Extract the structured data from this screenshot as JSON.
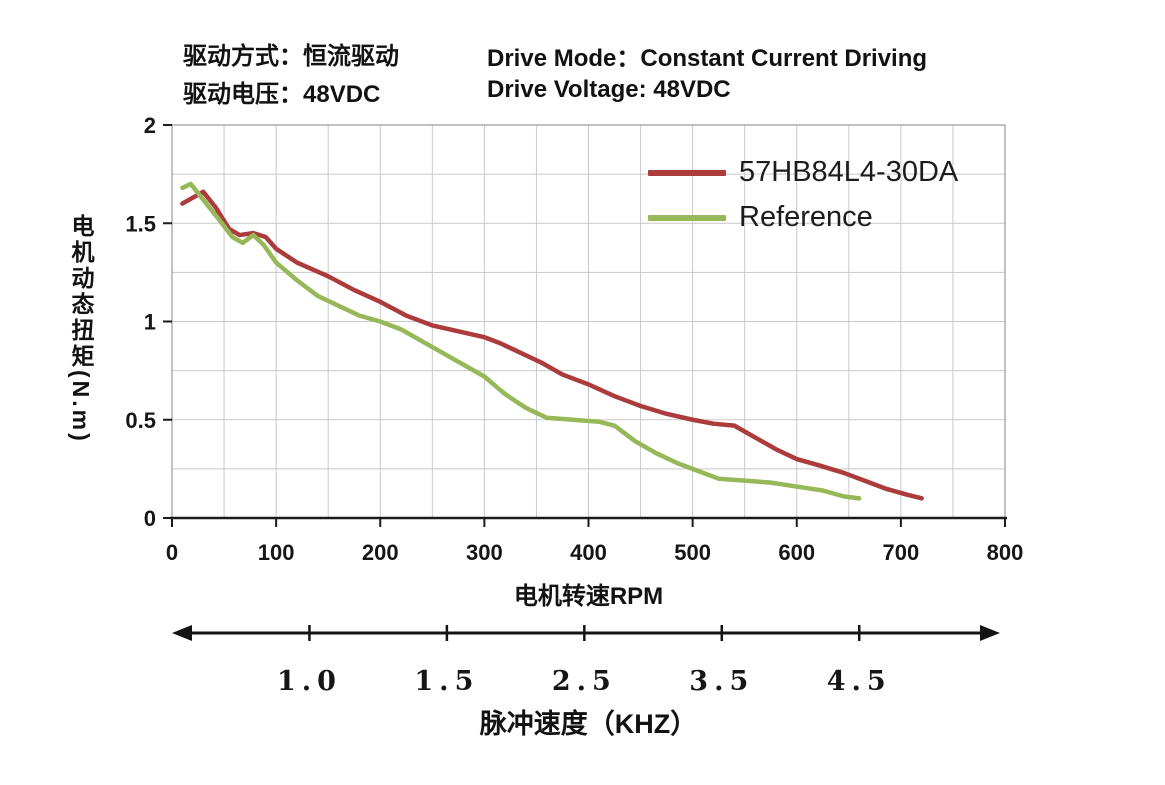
{
  "header": {
    "drive_mode_cn": "驱动方式：恒流驱动",
    "drive_mode_en": "Drive Mode：Constant Current Driving",
    "drive_voltage_cn": "驱动电压：48VDC",
    "drive_voltage_en": "Drive Voltage: 48VDC"
  },
  "chart_data": {
    "type": "line",
    "title": "",
    "xlabel": "电机转速RPM",
    "ylabel": "电机动态扭矩(N.m)",
    "xlim": [
      0,
      800
    ],
    "ylim": [
      0,
      2
    ],
    "xticks": [
      0,
      100,
      200,
      300,
      400,
      500,
      600,
      700,
      800
    ],
    "yticks": [
      0,
      0.5,
      1,
      1.5,
      2
    ],
    "grid": true,
    "grid_minor_x_step": 50,
    "grid_minor_y_step": 0.25,
    "legend_position": "top-right",
    "series": [
      {
        "name": "57HB84L4-30DA",
        "color": "#ac3c3c",
        "points": [
          [
            10,
            1.6
          ],
          [
            20,
            1.63
          ],
          [
            30,
            1.66
          ],
          [
            42,
            1.58
          ],
          [
            55,
            1.47
          ],
          [
            65,
            1.44
          ],
          [
            78,
            1.45
          ],
          [
            90,
            1.43
          ],
          [
            100,
            1.37
          ],
          [
            120,
            1.3
          ],
          [
            150,
            1.23
          ],
          [
            175,
            1.16
          ],
          [
            200,
            1.1
          ],
          [
            225,
            1.03
          ],
          [
            250,
            0.98
          ],
          [
            275,
            0.95
          ],
          [
            300,
            0.92
          ],
          [
            315,
            0.89
          ],
          [
            335,
            0.84
          ],
          [
            355,
            0.79
          ],
          [
            375,
            0.73
          ],
          [
            400,
            0.68
          ],
          [
            425,
            0.62
          ],
          [
            450,
            0.57
          ],
          [
            475,
            0.53
          ],
          [
            500,
            0.5
          ],
          [
            520,
            0.48
          ],
          [
            540,
            0.47
          ],
          [
            560,
            0.41
          ],
          [
            580,
            0.35
          ],
          [
            600,
            0.3
          ],
          [
            620,
            0.27
          ],
          [
            645,
            0.23
          ],
          [
            665,
            0.19
          ],
          [
            685,
            0.15
          ],
          [
            705,
            0.12
          ],
          [
            720,
            0.1
          ]
        ]
      },
      {
        "name": "Reference",
        "color": "#96b858",
        "points": [
          [
            10,
            1.68
          ],
          [
            18,
            1.7
          ],
          [
            30,
            1.62
          ],
          [
            45,
            1.52
          ],
          [
            58,
            1.43
          ],
          [
            68,
            1.4
          ],
          [
            78,
            1.44
          ],
          [
            88,
            1.39
          ],
          [
            100,
            1.3
          ],
          [
            120,
            1.21
          ],
          [
            140,
            1.13
          ],
          [
            160,
            1.08
          ],
          [
            180,
            1.03
          ],
          [
            200,
            1.0
          ],
          [
            220,
            0.96
          ],
          [
            240,
            0.9
          ],
          [
            260,
            0.84
          ],
          [
            280,
            0.78
          ],
          [
            300,
            0.72
          ],
          [
            320,
            0.63
          ],
          [
            340,
            0.56
          ],
          [
            360,
            0.51
          ],
          [
            385,
            0.5
          ],
          [
            410,
            0.49
          ],
          [
            425,
            0.47
          ],
          [
            445,
            0.39
          ],
          [
            465,
            0.33
          ],
          [
            485,
            0.28
          ],
          [
            505,
            0.24
          ],
          [
            525,
            0.2
          ],
          [
            550,
            0.19
          ],
          [
            575,
            0.18
          ],
          [
            600,
            0.16
          ],
          [
            625,
            0.14
          ],
          [
            645,
            0.11
          ],
          [
            660,
            0.1
          ]
        ]
      }
    ]
  },
  "secondary_axis": {
    "labels": [
      "1.0",
      "1.5",
      "2.5",
      "3.5",
      "4.5"
    ],
    "title": "脉冲速度（KHZ）"
  }
}
